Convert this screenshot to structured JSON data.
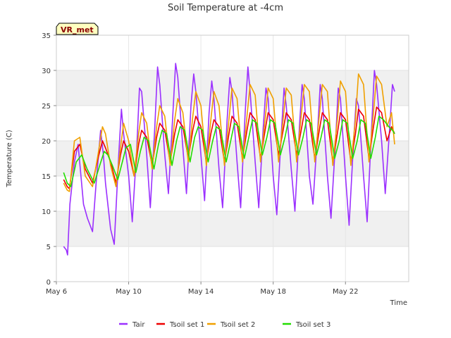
{
  "chart_data": {
    "type": "line",
    "title": "Soil Temperature at -4cm",
    "badge": "VR_met",
    "xlabel": "Time",
    "ylabel": "Temperature (C)",
    "xlim": [
      0,
      19.5
    ],
    "ylim": [
      0,
      35
    ],
    "yticks": [
      0,
      5,
      10,
      15,
      20,
      25,
      30,
      35
    ],
    "xticks": [
      {
        "value": 0,
        "label": "May 6"
      },
      {
        "value": 4,
        "label": "May 10"
      },
      {
        "value": 8,
        "label": "May 14"
      },
      {
        "value": 12,
        "label": "May 18"
      },
      {
        "value": 16,
        "label": "May 22"
      }
    ],
    "grid": true,
    "legend_position": "bottom",
    "series": [
      {
        "name": "Tair",
        "color": "#9b30ff",
        "x": [
          0.4,
          0.55,
          0.62,
          0.75,
          1.0,
          1.2,
          1.5,
          1.72,
          2.0,
          2.2,
          2.45,
          2.6,
          2.72,
          3.0,
          3.2,
          3.45,
          3.6,
          3.72,
          4.0,
          4.2,
          4.45,
          4.6,
          4.72,
          5.0,
          5.2,
          5.45,
          5.6,
          5.72,
          6.0,
          6.2,
          6.45,
          6.6,
          6.72,
          7.0,
          7.2,
          7.45,
          7.6,
          7.72,
          8.0,
          8.2,
          8.45,
          8.6,
          8.72,
          9.0,
          9.2,
          9.45,
          9.6,
          9.72,
          10.0,
          10.2,
          10.45,
          10.6,
          10.72,
          11.0,
          11.2,
          11.45,
          11.6,
          11.72,
          12.0,
          12.2,
          12.45,
          12.6,
          12.72,
          13.0,
          13.2,
          13.45,
          13.6,
          13.72,
          14.0,
          14.2,
          14.45,
          14.6,
          14.72,
          15.0,
          15.2,
          15.45,
          15.6,
          15.72,
          16.0,
          16.2,
          16.45,
          16.6,
          16.72,
          17.0,
          17.2,
          17.45,
          17.6,
          17.72,
          18.0,
          18.2,
          18.45,
          18.6,
          18.72
        ],
        "y": [
          5.0,
          4.5,
          3.8,
          11,
          17,
          19.5,
          11,
          9,
          7.1,
          14,
          21.5,
          18,
          14,
          7.5,
          5.3,
          18,
          24.5,
          21,
          15,
          8.5,
          19,
          27.5,
          27,
          18,
          10.5,
          22,
          30.5,
          28,
          18,
          12.5,
          24,
          31,
          29,
          19,
          12.5,
          25,
          29.5,
          27,
          18,
          11.5,
          24,
          28.5,
          26,
          16,
          10.5,
          23,
          29,
          27,
          17,
          10.5,
          24,
          30.5,
          27,
          17,
          10.5,
          22,
          27.5,
          26,
          15,
          9.5,
          21,
          27.5,
          25,
          16,
          10.0,
          22,
          28,
          26,
          15,
          11,
          21,
          28,
          26,
          15,
          9.0,
          20,
          27.5,
          26,
          15,
          8.0,
          20,
          26,
          25,
          15,
          8.5,
          22,
          30,
          28,
          20,
          12.5,
          22,
          28,
          27
        ]
      },
      {
        "name": "Tsoil set 1",
        "color": "#ee0000",
        "x": [
          0.4,
          0.6,
          0.72,
          1.0,
          1.3,
          1.6,
          2.0,
          2.3,
          2.55,
          2.72,
          3.0,
          3.3,
          3.55,
          3.72,
          4.0,
          4.3,
          4.55,
          4.72,
          5.0,
          5.3,
          5.55,
          5.72,
          6.0,
          6.3,
          6.55,
          6.72,
          7.0,
          7.3,
          7.55,
          7.72,
          8.0,
          8.3,
          8.55,
          8.72,
          9.0,
          9.3,
          9.55,
          9.72,
          10.0,
          10.3,
          10.55,
          10.72,
          11.0,
          11.3,
          11.55,
          11.72,
          12.0,
          12.3,
          12.55,
          12.72,
          13.0,
          13.3,
          13.55,
          13.72,
          14.0,
          14.3,
          14.55,
          14.72,
          15.0,
          15.3,
          15.55,
          15.72,
          16.0,
          16.3,
          16.55,
          16.72,
          17.0,
          17.3,
          17.55,
          17.72,
          18.0,
          18.3,
          18.55,
          18.72
        ],
        "y": [
          14.5,
          13.5,
          13.2,
          18.5,
          19.5,
          16.0,
          14.0,
          17.5,
          20.0,
          19.0,
          17.0,
          14.0,
          18.0,
          20.0,
          18.5,
          15.0,
          19.5,
          21.5,
          20.5,
          16.5,
          20.5,
          22.5,
          21.5,
          17.0,
          21.0,
          23.0,
          22.0,
          17.5,
          21.5,
          23.5,
          22.0,
          17.0,
          21.0,
          23.0,
          22.0,
          17.0,
          21.0,
          23.5,
          22.5,
          17.5,
          21.5,
          24.0,
          23.0,
          17.5,
          21.5,
          24.0,
          23.0,
          18.0,
          21.5,
          24.0,
          23.0,
          18.0,
          21.5,
          24.0,
          23.0,
          17.5,
          21.5,
          24.0,
          23.0,
          17.0,
          21.0,
          24.0,
          23.0,
          17.0,
          21.0,
          24.5,
          23.5,
          17.5,
          22.0,
          24.8,
          24.0,
          20.0,
          22.0,
          21.0
        ]
      },
      {
        "name": "Tsoil set 2",
        "color": "#f0a000",
        "x": [
          0.4,
          0.6,
          0.72,
          1.0,
          1.3,
          1.6,
          2.0,
          2.3,
          2.55,
          2.72,
          3.0,
          3.3,
          3.55,
          3.72,
          4.0,
          4.3,
          4.55,
          4.72,
          5.0,
          5.3,
          5.55,
          5.72,
          6.0,
          6.3,
          6.55,
          6.72,
          7.0,
          7.3,
          7.55,
          7.72,
          8.0,
          8.3,
          8.55,
          8.72,
          9.0,
          9.3,
          9.55,
          9.72,
          10.0,
          10.3,
          10.55,
          10.72,
          11.0,
          11.3,
          11.55,
          11.72,
          12.0,
          12.3,
          12.55,
          12.72,
          13.0,
          13.3,
          13.55,
          13.72,
          14.0,
          14.3,
          14.55,
          14.72,
          15.0,
          15.3,
          15.55,
          15.72,
          16.0,
          16.3,
          16.55,
          16.72,
          17.0,
          17.3,
          17.55,
          17.72,
          18.0,
          18.3,
          18.55,
          18.72
        ],
        "y": [
          14.0,
          13.0,
          12.8,
          20.0,
          20.5,
          15.0,
          13.5,
          18.0,
          22.0,
          21.0,
          16.5,
          13.5,
          19.0,
          22.5,
          20.0,
          15.0,
          21.0,
          24.0,
          22.5,
          16.0,
          22.0,
          25.0,
          23.5,
          16.5,
          23.0,
          26.0,
          24.0,
          17.0,
          23.5,
          27.0,
          25.0,
          16.5,
          23.0,
          27.0,
          25.0,
          16.5,
          23.0,
          27.5,
          26.0,
          17.0,
          23.5,
          28.0,
          26.5,
          17.0,
          23.0,
          27.5,
          26.0,
          17.0,
          23.0,
          27.5,
          26.5,
          17.0,
          23.5,
          28.0,
          27.0,
          17.0,
          23.5,
          28.0,
          27.0,
          16.5,
          23.0,
          28.5,
          27.0,
          16.5,
          23.0,
          29.5,
          28.0,
          17.0,
          24.0,
          29.2,
          28.0,
          22.0,
          24.0,
          19.5
        ]
      },
      {
        "name": "Tsoil set 3",
        "color": "#22dd00",
        "x": [
          0.4,
          0.6,
          0.8,
          1.1,
          1.4,
          1.7,
          2.1,
          2.4,
          2.65,
          2.85,
          3.1,
          3.4,
          3.65,
          3.85,
          4.1,
          4.4,
          4.65,
          4.85,
          5.1,
          5.4,
          5.65,
          5.85,
          6.1,
          6.4,
          6.65,
          6.85,
          7.1,
          7.4,
          7.65,
          7.85,
          8.1,
          8.4,
          8.65,
          8.85,
          9.1,
          9.4,
          9.65,
          9.85,
          10.1,
          10.4,
          10.65,
          10.85,
          11.1,
          11.4,
          11.65,
          11.85,
          12.1,
          12.4,
          12.65,
          12.85,
          13.1,
          13.4,
          13.65,
          13.85,
          14.1,
          14.4,
          14.65,
          14.85,
          15.1,
          15.4,
          15.65,
          15.85,
          16.1,
          16.4,
          16.65,
          16.85,
          17.1,
          17.4,
          17.65,
          17.85,
          18.1,
          18.4,
          18.6,
          18.72
        ],
        "y": [
          15.5,
          14.0,
          13.5,
          17.0,
          18.0,
          16.0,
          14.0,
          16.5,
          18.5,
          18.0,
          16.5,
          14.5,
          17.0,
          19.0,
          19.5,
          15.5,
          18.5,
          20.5,
          20.0,
          16.0,
          19.5,
          21.5,
          21.0,
          16.5,
          20.0,
          22.0,
          21.5,
          17.0,
          20.5,
          22.0,
          21.5,
          17.0,
          20.0,
          22.0,
          21.5,
          17.0,
          20.0,
          22.5,
          22.0,
          17.5,
          20.5,
          23.0,
          22.5,
          18.0,
          20.5,
          23.0,
          22.5,
          18.0,
          20.5,
          23.0,
          22.5,
          18.0,
          20.5,
          23.0,
          22.5,
          18.0,
          20.5,
          23.0,
          22.5,
          17.5,
          20.0,
          23.0,
          22.5,
          17.5,
          20.0,
          23.0,
          22.5,
          17.5,
          20.5,
          23.5,
          23.0,
          22.0,
          21.5,
          21.0
        ]
      }
    ]
  }
}
